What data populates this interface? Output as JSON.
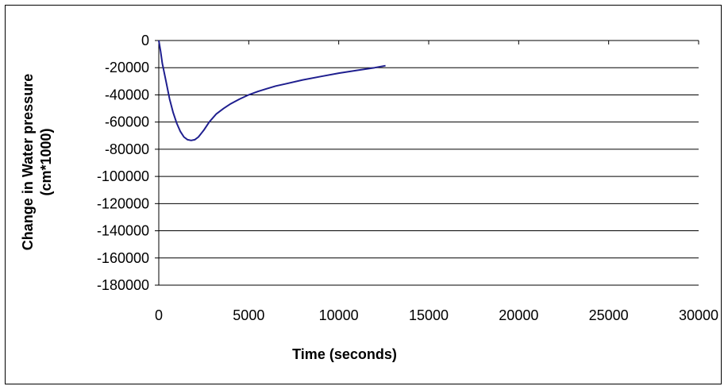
{
  "chart_data": {
    "type": "line",
    "title": "",
    "xlabel": "Time (seconds)",
    "ylabel_lines": [
      "Change in Water pressure",
      "(cm*1000)"
    ],
    "xlim": [
      0,
      30000
    ],
    "ylim": [
      -180000,
      0
    ],
    "x_ticks": [
      0,
      5000,
      10000,
      15000,
      20000,
      25000,
      30000
    ],
    "y_ticks": [
      0,
      -20000,
      -40000,
      -60000,
      -80000,
      -100000,
      -120000,
      -140000,
      -160000,
      -180000
    ],
    "x_tick_labels": [
      "0",
      "5000",
      "10000",
      "15000",
      "20000",
      "25000",
      "30000"
    ],
    "y_tick_labels": [
      "0",
      "-20000",
      "-40000",
      "-60000",
      "-80000",
      "-100000",
      "-120000",
      "-140000",
      "-160000",
      "-180000"
    ],
    "grid": "horizontal",
    "legend": "none",
    "series": [
      {
        "color": "#1f1f8f",
        "x": [
          0,
          100,
          200,
          400,
          600,
          800,
          1000,
          1200,
          1400,
          1600,
          1800,
          2000,
          2200,
          2500,
          2800,
          3200,
          3600,
          4000,
          4500,
          5000,
          5500,
          6000,
          6500,
          7000,
          8000,
          9000,
          10000,
          11000,
          12000,
          12600
        ],
        "values": [
          0,
          -8000,
          -17000,
          -30000,
          -43000,
          -53000,
          -61000,
          -67000,
          -71000,
          -73000,
          -73500,
          -73000,
          -71000,
          -66000,
          -60000,
          -54000,
          -50000,
          -46500,
          -43000,
          -40000,
          -37500,
          -35500,
          -33500,
          -32000,
          -29000,
          -26500,
          -24000,
          -22000,
          -20000,
          -18500
        ]
      }
    ]
  }
}
